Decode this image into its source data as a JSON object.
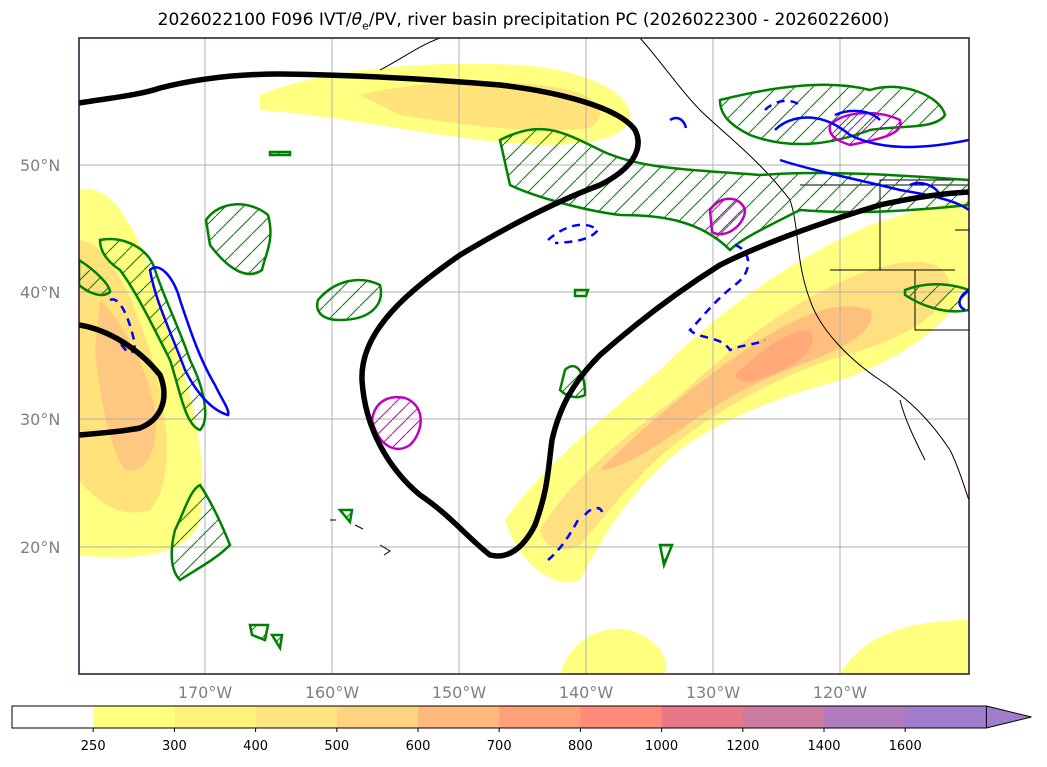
{
  "title": "2026022100 F096 IVT/θe/PV, river basin precipitation PC (2026022300 - 2026022600)",
  "title_parts": {
    "prefix": "2026022100 F096 IVT/",
    "theta": "θ",
    "sub": "e",
    "suffix": "/PV, river basin precipitation PC (2026022300 - 2026022600)"
  },
  "lat_labels": [
    "50°N",
    "40°N",
    "30°N",
    "20°N"
  ],
  "lon_labels": [
    "170°W",
    "160°W",
    "150°W",
    "140°W",
    "130°W",
    "120°W"
  ],
  "colorbar": {
    "labels": [
      "250",
      "300",
      "400",
      "500",
      "600",
      "700",
      "800",
      "1000",
      "1200",
      "1400",
      "1600"
    ],
    "colors": [
      "#ffffff",
      "#ffff80",
      "#fff27a",
      "#ffe680",
      "#ffd480",
      "#ffb97d",
      "#ffa078",
      "#ff8a7a",
      "#e87888",
      "#cc7aa0",
      "#b07cbc",
      "#a07ccc"
    ],
    "extend": "max"
  },
  "colors": {
    "ivt_fill": "#ffd77a",
    "theta_contour": "#000000",
    "pv_contour": "#0000ff",
    "precip_contour": "#008000",
    "magenta_contour": "#c000c0"
  }
}
